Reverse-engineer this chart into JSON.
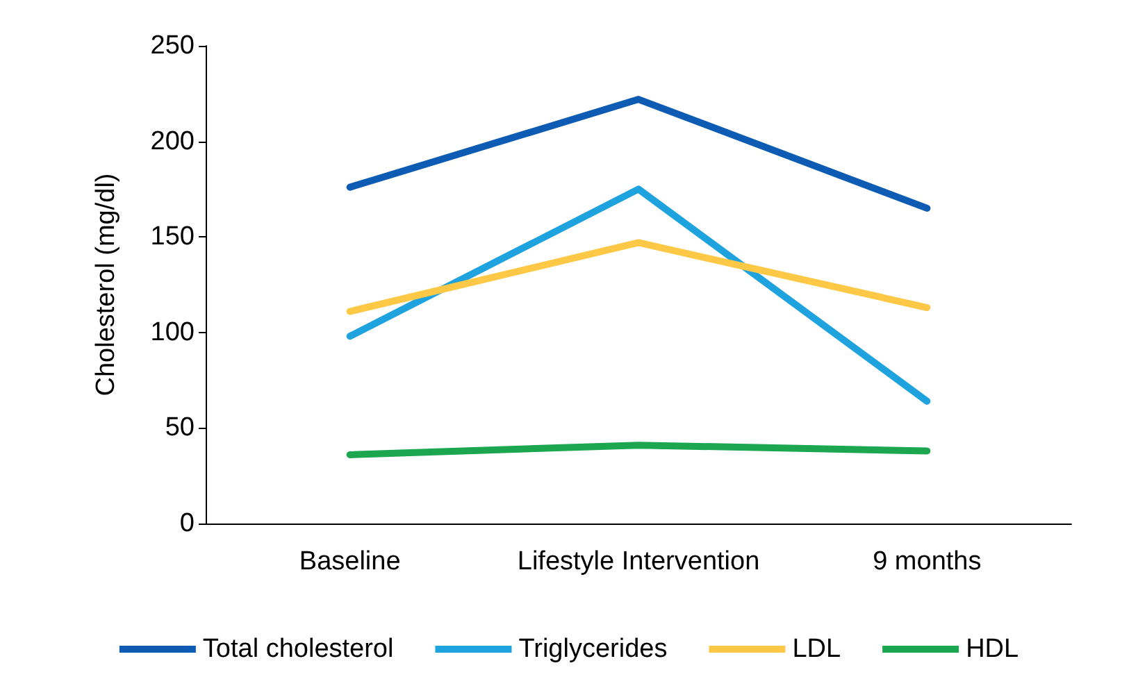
{
  "chart_data": {
    "type": "line",
    "ylabel": "Cholesterol (mg/dl)",
    "categories": [
      "Baseline",
      "Lifestyle Intervention",
      "9 months"
    ],
    "series": [
      {
        "name": "Total cholesterol",
        "color": "#0e5bb4",
        "values": [
          176,
          222,
          165
        ]
      },
      {
        "name": "Triglycerides",
        "color": "#1fa3df",
        "values": [
          98,
          175,
          64
        ]
      },
      {
        "name": "LDL",
        "color": "#fdc846",
        "values": [
          111,
          147,
          113
        ]
      },
      {
        "name": "HDL",
        "color": "#1ca650",
        "values": [
          36,
          41,
          38
        ]
      }
    ],
    "ylim": [
      0,
      250
    ],
    "yticks": [
      0,
      50,
      100,
      150,
      200,
      250
    ],
    "grid": false,
    "legend": "bottom",
    "marker": "none",
    "line_style": "solid"
  }
}
